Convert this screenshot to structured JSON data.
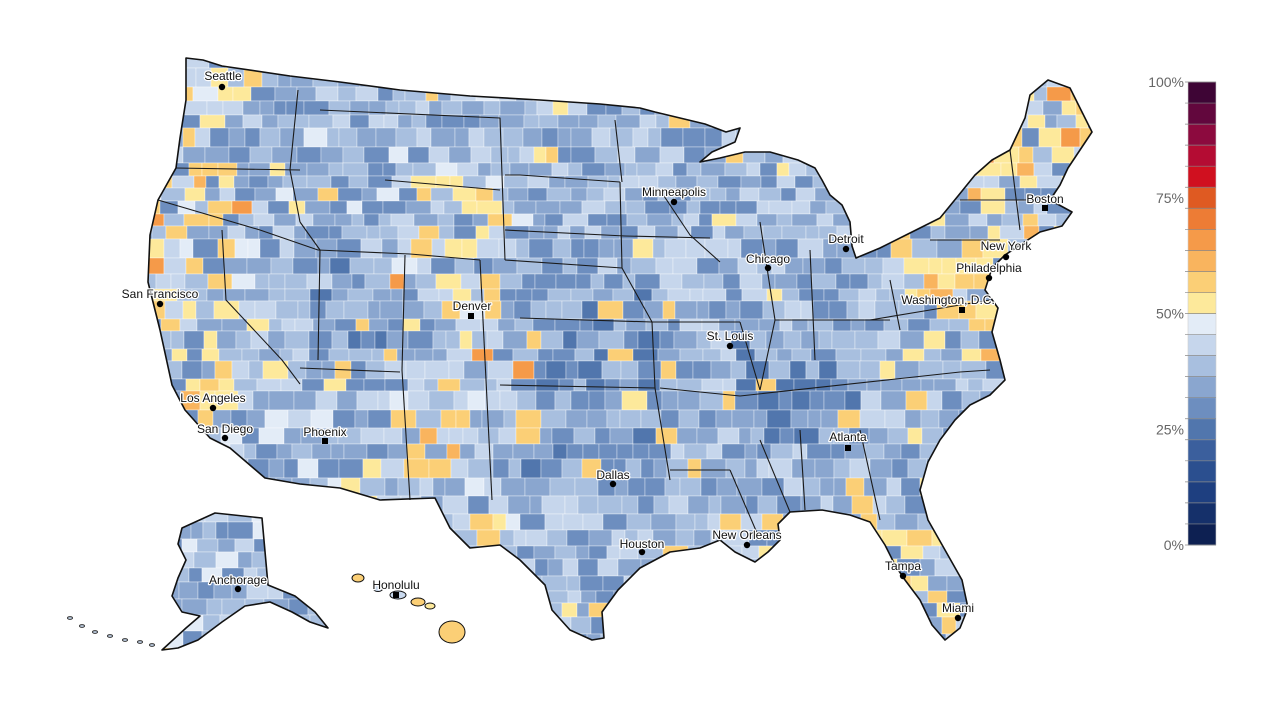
{
  "map": {
    "cities": [
      {
        "name": "Seattle",
        "marker": "circle"
      },
      {
        "name": "San Francisco",
        "marker": "circle"
      },
      {
        "name": "Los Angeles",
        "marker": "circle"
      },
      {
        "name": "San Diego",
        "marker": "circle"
      },
      {
        "name": "Phoenix",
        "marker": "square"
      },
      {
        "name": "Denver",
        "marker": "square"
      },
      {
        "name": "Minneapolis",
        "marker": "circle"
      },
      {
        "name": "Chicago",
        "marker": "circle"
      },
      {
        "name": "Detroit",
        "marker": "circle"
      },
      {
        "name": "St. Louis",
        "marker": "circle"
      },
      {
        "name": "Dallas",
        "marker": "circle"
      },
      {
        "name": "Houston",
        "marker": "circle"
      },
      {
        "name": "New Orleans",
        "marker": "circle"
      },
      {
        "name": "Atlanta",
        "marker": "square"
      },
      {
        "name": "Tampa",
        "marker": "circle"
      },
      {
        "name": "Miami",
        "marker": "circle"
      },
      {
        "name": "Boston",
        "marker": "square"
      },
      {
        "name": "New York",
        "marker": "circle"
      },
      {
        "name": "Philadelphia",
        "marker": "circle"
      },
      {
        "name": "Washington, D.C.",
        "marker": "square"
      },
      {
        "name": "Anchorage",
        "marker": "circle"
      },
      {
        "name": "Honolulu",
        "marker": "square"
      }
    ]
  },
  "legend": {
    "tick_labels": [
      "100%",
      "75%",
      "50%",
      "25%",
      "0%"
    ],
    "range": [
      0,
      100
    ],
    "bin_colors": [
      "#0d2052",
      "#15306a",
      "#1e3f80",
      "#2b4f8f",
      "#3b5f9d",
      "#5176ad",
      "#6d8ebf",
      "#8aa6cf",
      "#a8bfdf",
      "#c6d6ec",
      "#e3ecf7",
      "#fde99b",
      "#fbcf76",
      "#f9b45e",
      "#f59a49",
      "#ed7c35",
      "#df5a22",
      "#d0101f",
      "#b40c33",
      "#8c0a3e",
      "#62073d",
      "#3e0535"
    ]
  }
}
